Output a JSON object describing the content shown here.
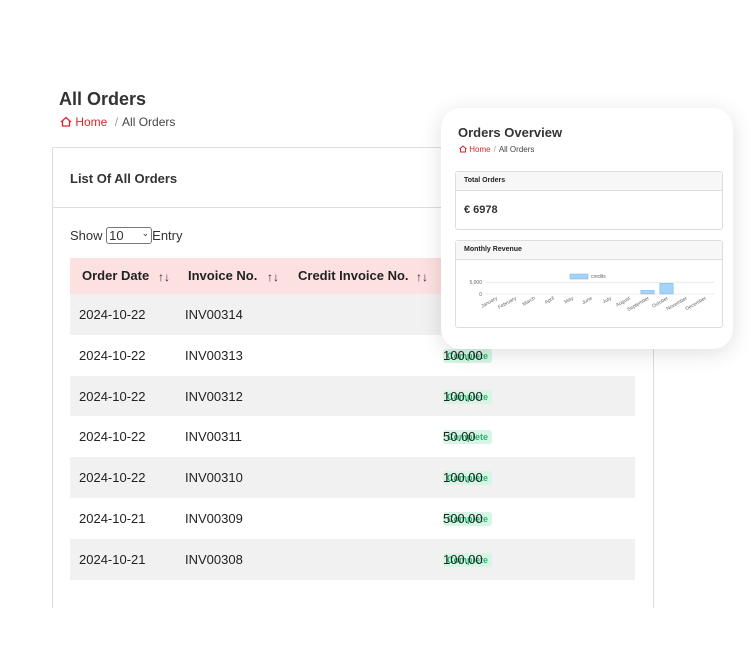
{
  "header": {
    "title": "All Orders",
    "breadcrumb": [
      "Home",
      "All Orders"
    ]
  },
  "card": {
    "title": "List Of All Orders",
    "show": "Show",
    "page_size": "10",
    "entry": "Entry",
    "table": {
      "headers": [
        "Order Date",
        "Invoice No.",
        "Credit Invoice No."
      ],
      "rows": [
        [
          "2024-10-22",
          "INV00314"
        ],
        [
          "2024-10-22",
          "INV00313",
          "Complete",
          "100.00"
        ],
        [
          "2024-10-22",
          "INV00312",
          "Complete",
          "100.00"
        ],
        [
          "2024-10-22",
          "INV00311",
          "Complete",
          "50.00"
        ],
        [
          "2024-10-22",
          "INV00310",
          "Complete",
          "100.00"
        ],
        [
          "2024-10-21",
          "INV00309",
          "Complete",
          "500.00"
        ],
        [
          "2024-10-21",
          "INV00308",
          "Complete",
          "100.00"
        ]
      ]
    }
  },
  "overview": {
    "title": "Orders Overview",
    "breadcrumb": [
      "Home",
      "All Orders"
    ],
    "total_label": "Total Orders",
    "total": "€ 6978",
    "chart_data": {
      "type": "bar",
      "title": "Monthly Revenue",
      "categories": [
        "January",
        "February",
        "March",
        "April",
        "May",
        "June",
        "July",
        "August",
        "September",
        "October",
        "November",
        "December"
      ],
      "series": [
        {
          "name": "credits",
          "color": "#a5d3f7",
          "values": [
            0,
            0,
            0,
            0,
            0,
            0,
            0,
            0,
            1500,
            4500,
            0,
            0
          ]
        }
      ],
      "ylim": [
        0,
        5500
      ],
      "yticks": [
        0,
        {
          "value": 5000,
          "label": "5,000"
        }
      ],
      "grid": true
    }
  }
}
